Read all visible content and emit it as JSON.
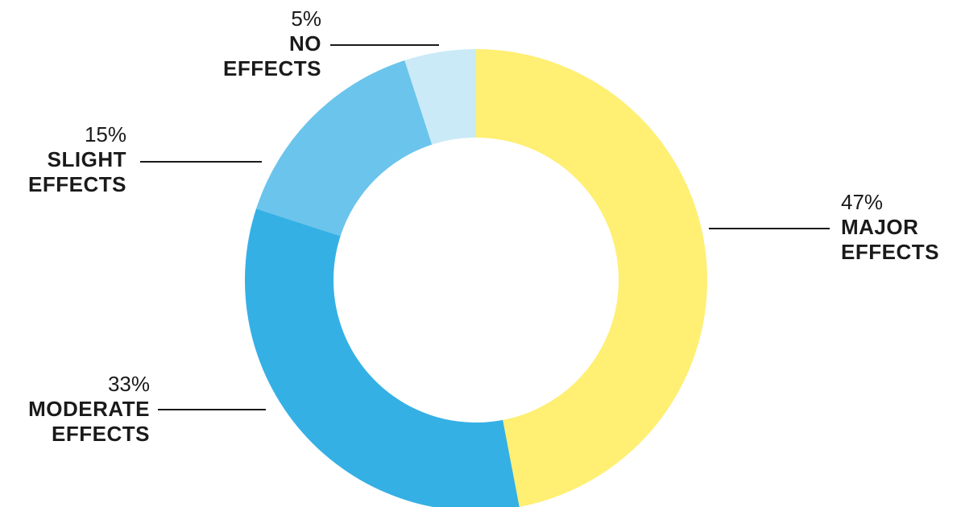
{
  "chart_data": {
    "type": "pie",
    "variant": "donut",
    "slices": [
      {
        "value": 47,
        "pct_label": "47%",
        "name_lines": [
          "MAJOR",
          "EFFECTS"
        ],
        "color": "#FFEF73"
      },
      {
        "value": 33,
        "pct_label": "33%",
        "name_lines": [
          "MODERATE",
          "EFFECTS"
        ],
        "color": "#35B0E5"
      },
      {
        "value": 15,
        "pct_label": "15%",
        "name_lines": [
          "SLIGHT",
          "EFFECTS"
        ],
        "color": "#6BC4EC"
      },
      {
        "value": 5,
        "pct_label": "5%",
        "name_lines": [
          "NO",
          "EFFECTS"
        ],
        "color": "#CBEAF7"
      }
    ],
    "start_angle": "12 o'clock",
    "direction": "clockwise",
    "legend": "none",
    "labels": "outside with leader lines"
  }
}
